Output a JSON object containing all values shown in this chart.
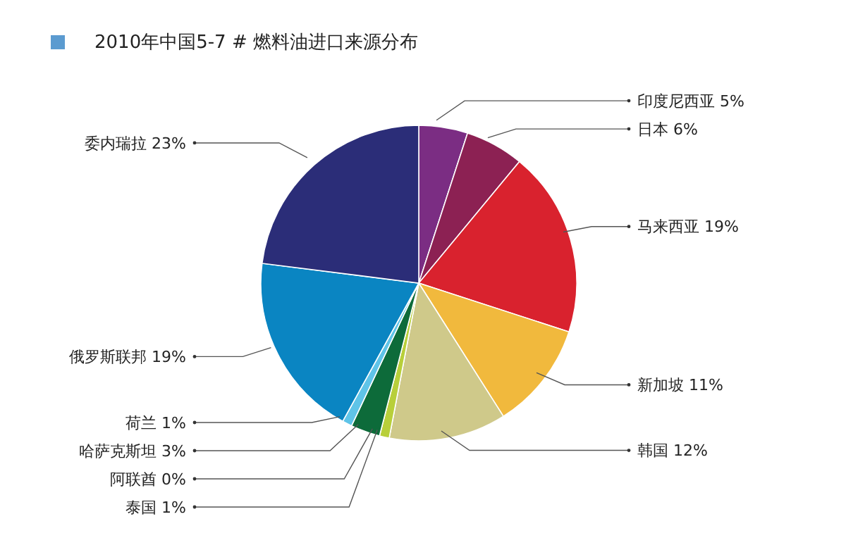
{
  "chart_data": {
    "type": "pie",
    "title": "2010年中国5-7 # 燃料油进口来源分布",
    "categories": [
      "印度尼西亚",
      "日本",
      "马来西亚",
      "新加坡",
      "韩国",
      "泰国",
      "阿联酋",
      "哈萨克斯坦",
      "荷兰",
      "俄罗斯联邦",
      "委内瑞拉"
    ],
    "values": [
      5,
      6,
      19,
      11,
      12,
      1,
      0,
      3,
      1,
      19,
      23
    ],
    "value_labels": [
      "5%",
      "6%",
      "19%",
      "11%",
      "12%",
      "1%",
      "0%",
      "3%",
      "1%",
      "19%",
      "23%"
    ],
    "colors": [
      "#7b2d83",
      "#8c2153",
      "#d9222e",
      "#f1b93d",
      "#cfc98a",
      "#b8cf3a",
      "#e8e04a",
      "#0d6b3a",
      "#5fc4e8",
      "#0a85c2",
      "#2b2d78"
    ]
  }
}
